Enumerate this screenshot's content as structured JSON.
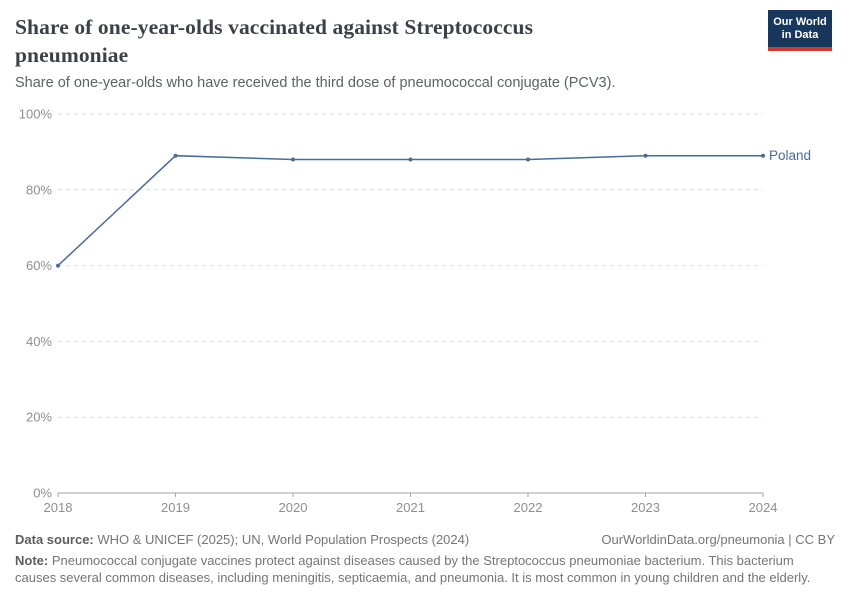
{
  "header": {
    "title": "Share of one-year-olds vaccinated against Streptococcus pneumoniae",
    "subtitle": "Share of one-year-olds who have received the third dose of pneumococcal conjugate (PCV3).",
    "logo": {
      "line1": "Our World",
      "line2": "in Data"
    }
  },
  "chart_data": {
    "type": "line",
    "title": "Share of one-year-olds vaccinated against Streptococcus pneumoniae",
    "x": [
      2018,
      2019,
      2020,
      2021,
      2022,
      2023,
      2024
    ],
    "series": [
      {
        "name": "Poland",
        "values": [
          60,
          89,
          88,
          88,
          88,
          89,
          89
        ],
        "color": "#4c6a9c"
      }
    ],
    "ylim": [
      0,
      100
    ],
    "yticks": [
      0,
      20,
      40,
      60,
      80,
      100
    ],
    "ytick_suffix": "%",
    "xlabel": "",
    "ylabel": "",
    "grid": "horizontal-dashed",
    "legend_position": "line-end-label"
  },
  "footer": {
    "datasource_label": "Data source:",
    "datasource_text": " WHO & UNICEF (2025); UN, World Population Prospects (2024)",
    "license_text": "OurWorldinData.org/pneumonia | CC BY",
    "note_label": "Note:",
    "note_text": " Pneumococcal conjugate vaccines protect against diseases caused by the Streptococcus pneumoniae bacterium. This bacterium causes several common diseases, including meningitis, septicaemia, and pneumonia. It is most common in young children and the elderly."
  },
  "colors": {
    "series_line": "#4c6a9c",
    "gridline": "#dadada",
    "axis": "#a3a3a3",
    "tick_label": "#8f8f8f",
    "logo_bg": "#18375f",
    "logo_accent": "#d13832"
  }
}
